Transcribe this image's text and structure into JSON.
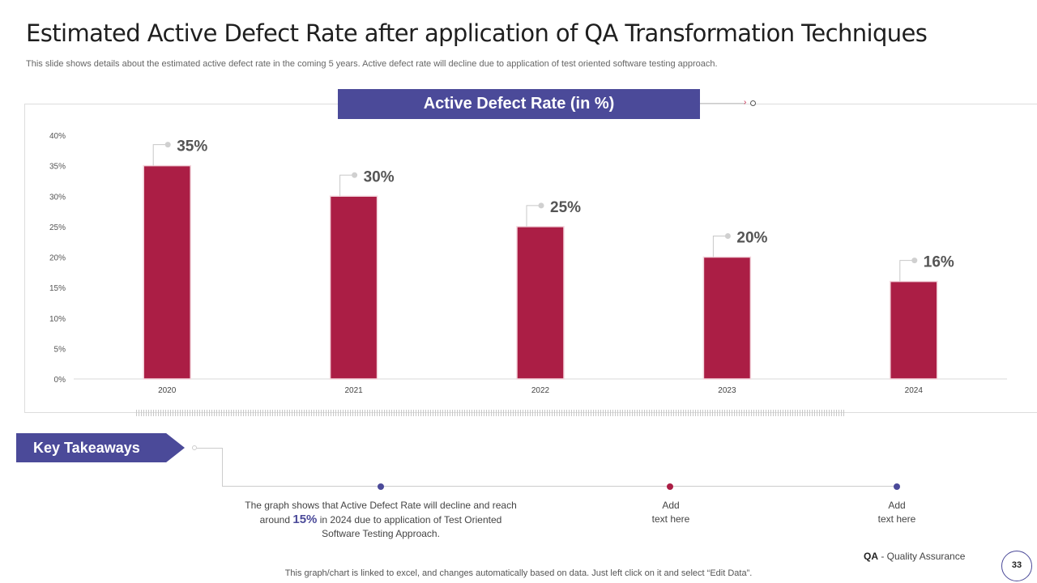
{
  "slide": {
    "title": "Estimated Active Defect Rate after application of QA Transformation Techniques",
    "subtitle": "This slide shows details about the estimated  active defect rate in the coming 5 years. Active  defect rate will decline due to application of test oriented software testing approach.",
    "page_number": "33",
    "footer_abbr": "QA",
    "footer_label": "- Quality Assurance",
    "footnote": "This graph/chart is linked to excel,  and changes automatically based on data. Just left click on it and select “Edit Data”."
  },
  "chart_header": "Active Defect Rate (in %)",
  "chart_data": {
    "type": "bar",
    "categories": [
      "2020",
      "2021",
      "2022",
      "2023",
      "2024"
    ],
    "values": [
      35,
      30,
      25,
      20,
      16
    ],
    "data_labels": [
      "35%",
      "30%",
      "25%",
      "20%",
      "16%"
    ],
    "yticks": [
      "0%",
      "5%",
      "10%",
      "15%",
      "20%",
      "25%",
      "30%",
      "35%",
      "40%"
    ],
    "ylim": [
      0,
      40
    ],
    "grid": false,
    "bar_color": "#ab1e45"
  },
  "key_takeaways": {
    "label": "Key Takeaways",
    "items": [
      {
        "pre": "The graph shows that Active Defect Rate will decline and reach around ",
        "highlight": "15%",
        "post": " in 2024 due to application of Test Oriented Software Testing Approach.",
        "dot_color": "#4b4a99"
      },
      {
        "text_line1": "Add",
        "text_line2": "text here",
        "dot_color": "#ab1e45"
      },
      {
        "text_line1": "Add",
        "text_line2": "text here",
        "dot_color": "#4b4a99"
      }
    ]
  },
  "colors": {
    "accent": "#4b4a99",
    "bar": "#ab1e45"
  }
}
